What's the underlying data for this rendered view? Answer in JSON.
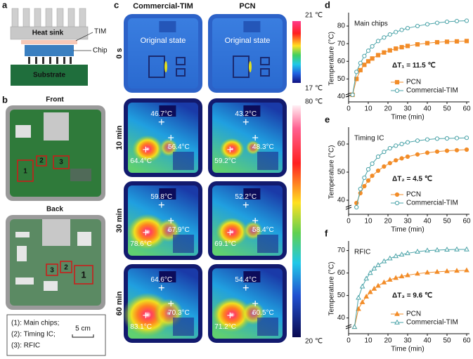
{
  "panel_a": {
    "letter": "a",
    "labels": [
      "Heat sink",
      "TIM",
      "Chip",
      "Substrate"
    ]
  },
  "panel_b": {
    "letter": "b",
    "front": "Front",
    "back": "Back",
    "front_markers": [
      "1",
      "2",
      "3"
    ],
    "back_markers": [
      "3",
      "2",
      "1"
    ],
    "legend": [
      "(1): Main chips;",
      "(2): Timing IC;",
      "(3): RFIC"
    ],
    "scale": "5 cm"
  },
  "panel_c": {
    "letter": "c",
    "columns": [
      "Commercial-TIM",
      "PCN"
    ],
    "rows": [
      {
        "time": "0 s",
        "images": [
          [
            "Original state"
          ],
          [
            "Original state"
          ]
        ]
      },
      {
        "time": "10 min",
        "images": [
          [
            "46.7°C",
            "56.4°C",
            "64.4°C"
          ],
          [
            "43.2°C",
            "48.3°C",
            "59.2°C"
          ]
        ]
      },
      {
        "time": "30 min",
        "images": [
          [
            "59.8°C",
            "67.9°C",
            "78.6°C"
          ],
          [
            "52.2°C",
            "58.4°C",
            "69.1°C"
          ]
        ]
      },
      {
        "time": "60 min",
        "images": [
          [
            "64.6°C",
            "70.3°C",
            "83.1°C"
          ],
          [
            "54.4°C",
            "60.5°C",
            "71.2°C"
          ]
        ]
      }
    ],
    "colorbar_initial": [
      "21 ℃",
      "17 ℃"
    ],
    "colorbar_heating": [
      "80 ℃",
      "20 ℃"
    ]
  },
  "chart_data": [
    {
      "type": "line",
      "panel_label": "d",
      "title": "Main chips",
      "annotation": "ΔT₁ = 11.5 ℃",
      "xlabel": "Time (min)",
      "ylabel": "Temperature (°C)",
      "x": [
        2,
        4,
        6,
        8,
        10,
        12,
        15,
        18,
        21,
        24,
        27,
        30,
        35,
        40,
        45,
        50,
        55,
        60
      ],
      "series": [
        {
          "name": "PCN",
          "color": "#f28c28",
          "marker": "square",
          "filled": true,
          "values": [
            41,
            50,
            55,
            58,
            60,
            61.6,
            63.5,
            65,
            66.2,
            67.2,
            68,
            68.7,
            69.6,
            70.3,
            70.8,
            71.1,
            71.3,
            71.5
          ]
        },
        {
          "name": "Commercial-TIM",
          "color": "#4aa3a8",
          "marker": "circle",
          "filled": false,
          "values": [
            41,
            54,
            59,
            63,
            66,
            68.5,
            71.5,
            73.5,
            75.2,
            76.6,
            77.8,
            78.8,
            80,
            81,
            81.8,
            82.4,
            82.8,
            83
          ]
        }
      ],
      "xlim": [
        0,
        60
      ],
      "xticks": [
        0,
        10,
        20,
        30,
        40,
        50,
        60
      ],
      "ylim": [
        37,
        86
      ],
      "yticks": [
        40,
        50,
        60,
        70,
        80
      ],
      "legend": "lower right"
    },
    {
      "type": "line",
      "panel_label": "e",
      "title": "Timing IC",
      "annotation": "ΔT₂ = 4.5 ℃",
      "xlabel": "Time (min)",
      "ylabel": "Temperature (°C)",
      "x": [
        4,
        6,
        8,
        10,
        12,
        15,
        18,
        21,
        24,
        27,
        30,
        35,
        40,
        45,
        50,
        55,
        60
      ],
      "series": [
        {
          "name": "PCN",
          "color": "#f28c28",
          "marker": "circle",
          "filled": true,
          "values": [
            39,
            42.5,
            45,
            47,
            48.7,
            50.5,
            52,
            53.2,
            54.2,
            54.9,
            55.5,
            56.3,
            56.9,
            57.3,
            57.6,
            57.8,
            58
          ]
        },
        {
          "name": "Commercial-TIM",
          "color": "#4aa3a8",
          "marker": "circle",
          "filled": false,
          "values": [
            37.5,
            44,
            48,
            51,
            53,
            55.5,
            57.2,
            58.5,
            59.4,
            60,
            60.6,
            61.2,
            61.6,
            61.9,
            62,
            62.1,
            62.2
          ]
        }
      ],
      "xlim": [
        0,
        60
      ],
      "xticks": [
        0,
        10,
        20,
        30,
        40,
        50,
        60
      ],
      "ylim": [
        35,
        65
      ],
      "yticks": [
        40,
        50,
        60
      ],
      "legend": "lower right"
    },
    {
      "type": "line",
      "panel_label": "f",
      "title": "RFIC",
      "annotation": "ΔT₃ = 9.6 ℃",
      "xlabel": "Time (min)",
      "ylabel": "Temperature (°C)",
      "x": [
        3,
        5,
        7,
        9,
        11,
        13,
        15,
        18,
        21,
        24,
        27,
        30,
        35,
        40,
        45,
        50,
        55,
        60
      ],
      "series": [
        {
          "name": "PCN",
          "color": "#f28c28",
          "marker": "triangle",
          "filled": true,
          "values": [
            36,
            44,
            47,
            49.5,
            51.5,
            53,
            54.3,
            55.8,
            57,
            57.8,
            58.5,
            59,
            59.7,
            60.2,
            60.5,
            60.8,
            61,
            61.2
          ]
        },
        {
          "name": "Commercial-TIM",
          "color": "#4aa3a8",
          "marker": "triangle",
          "filled": false,
          "values": [
            36,
            49,
            54,
            57.5,
            60,
            62,
            63.5,
            65.2,
            66.5,
            67.5,
            68.2,
            68.8,
            69.5,
            70,
            70.2,
            70.4,
            70.5,
            70.5
          ]
        }
      ],
      "xlim": [
        0,
        60
      ],
      "xticks": [
        0,
        10,
        20,
        30,
        40,
        50,
        60
      ],
      "ylim": [
        33,
        73
      ],
      "yticks": [
        40,
        50,
        60,
        70
      ],
      "legend": "lower right"
    }
  ]
}
